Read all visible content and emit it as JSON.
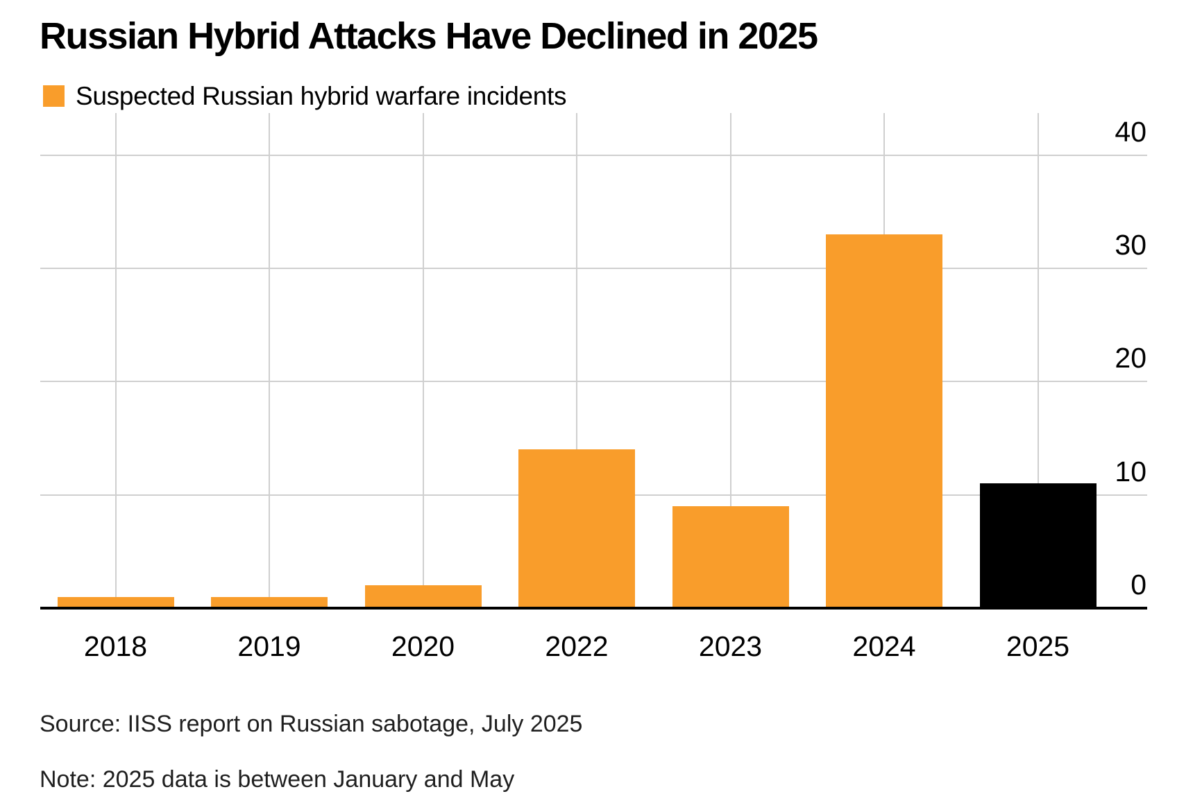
{
  "header": {
    "title": "Russian Hybrid Attacks Have Declined in 2025"
  },
  "legend": {
    "label": "Suspected Russian hybrid warfare incidents",
    "swatch_color": "#F99D2B"
  },
  "footer": {
    "source": "Source: IISS report on Russian sabotage, July 2025",
    "note": "Note: 2025 data is between January and May"
  },
  "colors": {
    "bar_orange": "#F99D2B",
    "bar_black": "#000000",
    "gridline": "#CFCFCF",
    "axis_line": "#000000",
    "text": "#000000",
    "footer_text": "#1F1F1F"
  },
  "chart_data": {
    "type": "bar",
    "title": "Russian Hybrid Attacks Have Declined in 2025",
    "legend_entries": [
      "Suspected Russian hybrid warfare incidents"
    ],
    "legend_position": "top-left",
    "categories": [
      "2018",
      "2019",
      "2020",
      "2022",
      "2023",
      "2024",
      "2025"
    ],
    "values": [
      1,
      1,
      2,
      14,
      9,
      33,
      11
    ],
    "bar_colors": [
      "#F99D2B",
      "#F99D2B",
      "#F99D2B",
      "#F99D2B",
      "#F99D2B",
      "#F99D2B",
      "#000000"
    ],
    "xlabel": "",
    "ylabel": "",
    "ylim": [
      0,
      40
    ],
    "yticks": [
      0,
      10,
      20,
      30,
      40
    ],
    "ytick_labels": [
      "0",
      "10",
      "20",
      "30",
      "40"
    ],
    "ytick_side": "right",
    "grid": true,
    "gridlines": "horizontal-at-yticks-plus-vertical-at-each-category"
  }
}
